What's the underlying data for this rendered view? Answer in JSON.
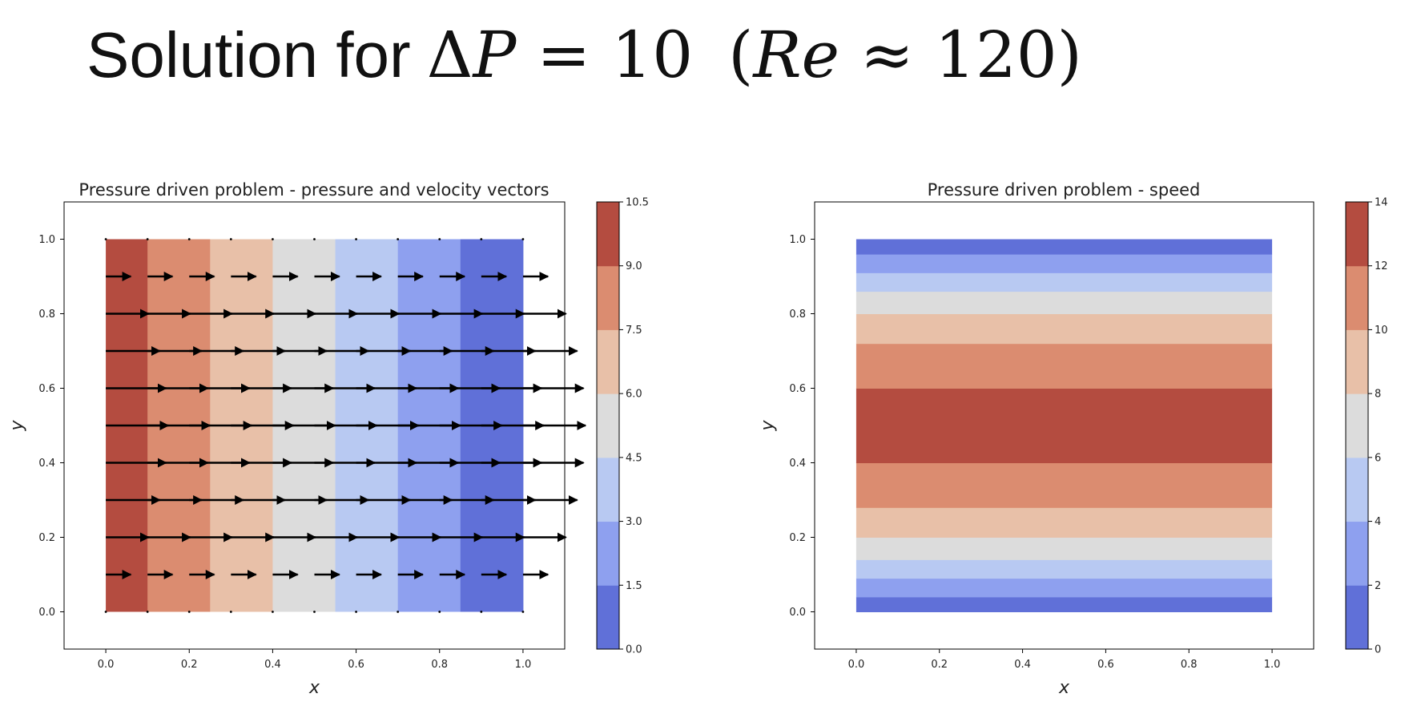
{
  "slide": {
    "title_text": "Solution for",
    "title_delta": "Δ",
    "title_p": "P",
    "title_eq": "=",
    "title_value": "10",
    "title_paren_open": "(",
    "title_re": "Re",
    "title_approx": "≈",
    "title_re_value": "120",
    "title_paren_close": ")"
  },
  "chart_data": [
    {
      "type": "heatmap",
      "variant": "filled-contour-with-quiver",
      "title": "Pressure driven problem - pressure and velocity vectors",
      "xlabel": "x",
      "ylabel": "y",
      "xlim": [
        -0.1,
        1.1
      ],
      "ylim": [
        -0.1,
        1.1
      ],
      "xticks": [
        "0.0",
        "0.2",
        "0.4",
        "0.6",
        "0.8",
        "1.0"
      ],
      "yticks": [
        "0.0",
        "0.2",
        "0.4",
        "0.6",
        "0.8",
        "1.0"
      ],
      "grid": false,
      "contour_axis": "x",
      "contour_edges": [
        0.0,
        0.1,
        0.25,
        0.4,
        0.55,
        0.7,
        0.85,
        1.0
      ],
      "contour_colors": [
        "#b44c40",
        "#db8c70",
        "#e8c0a8",
        "#dcdcdc",
        "#b8c9f2",
        "#8ea0ef",
        "#6070d8"
      ],
      "colorbar": {
        "levels": [
          0.0,
          1.5,
          3.0,
          4.5,
          6.0,
          7.5,
          9.0,
          10.5
        ],
        "tick_labels": [
          "0.0",
          "1.5",
          "3.0",
          "4.5",
          "6.0",
          "7.5",
          "9.0",
          "10.5"
        ],
        "colors": [
          "#6070d8",
          "#8ea0ef",
          "#b8c9f2",
          "#dcdcdc",
          "#e8c0a8",
          "#db8c70",
          "#b44c40"
        ]
      },
      "quiver": {
        "x": [
          0.0,
          0.1,
          0.2,
          0.3,
          0.4,
          0.5,
          0.6,
          0.7,
          0.8,
          0.9,
          1.0
        ],
        "y": [
          0.0,
          0.1,
          0.2,
          0.3,
          0.4,
          0.5,
          0.6,
          0.7,
          0.8,
          0.9,
          1.0
        ],
        "u_profile": [
          0.0,
          0.06,
          0.103,
          0.13,
          0.145,
          0.15,
          0.145,
          0.13,
          0.103,
          0.06,
          0.0
        ]
      }
    },
    {
      "type": "heatmap",
      "variant": "filled-contour",
      "title": "Pressure driven problem - speed",
      "xlabel": "x",
      "ylabel": "y",
      "xlim": [
        -0.1,
        1.1
      ],
      "ylim": [
        -0.1,
        1.1
      ],
      "xticks": [
        "0.0",
        "0.2",
        "0.4",
        "0.6",
        "0.8",
        "1.0"
      ],
      "yticks": [
        "0.0",
        "0.2",
        "0.4",
        "0.6",
        "0.8",
        "1.0"
      ],
      "grid": false,
      "contour_axis": "y",
      "contour_edges": [
        0.0,
        0.04,
        0.09,
        0.14,
        0.2,
        0.28,
        0.4,
        0.6,
        0.72,
        0.8,
        0.86,
        0.91,
        0.96,
        1.0
      ],
      "contour_colors": [
        "#6070d8",
        "#8ea0ef",
        "#b8c9f2",
        "#dcdcdc",
        "#e8c0a8",
        "#db8c70",
        "#b44c40",
        "#db8c70",
        "#e8c0a8",
        "#dcdcdc",
        "#b8c9f2",
        "#8ea0ef",
        "#6070d8"
      ],
      "colorbar": {
        "levels": [
          0,
          2,
          4,
          6,
          8,
          10,
          12,
          14
        ],
        "tick_labels": [
          "0",
          "2",
          "4",
          "6",
          "8",
          "10",
          "12",
          "14"
        ],
        "colors": [
          "#6070d8",
          "#8ea0ef",
          "#b8c9f2",
          "#dcdcdc",
          "#e8c0a8",
          "#db8c70",
          "#b44c40"
        ]
      }
    }
  ]
}
